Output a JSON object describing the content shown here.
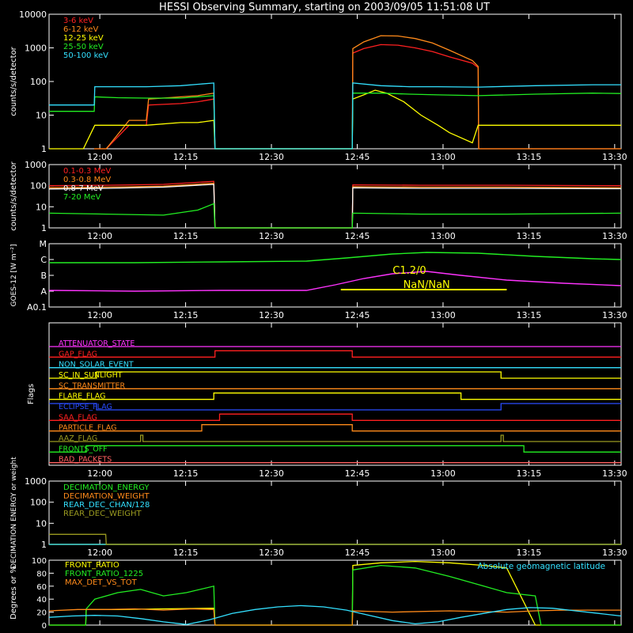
{
  "title": "HESSI Observing Summary, starting on 2003/09/05 11:51:08 UT",
  "time_ticks": [
    "12:00",
    "12:15",
    "12:30",
    "12:45",
    "13:00",
    "13:15",
    "13:30"
  ],
  "colors": {
    "red": "#ff2020",
    "orange": "#ff8a1a",
    "yellow": "#ffff00",
    "green": "#22ee22",
    "cyan": "#33e0ff",
    "magenta": "#ff33ff",
    "blue": "#2a4dff",
    "olive": "#9a9a20",
    "pink": "#ff6060",
    "white": "#ffffff"
  },
  "chart_data": [
    {
      "id": "rates",
      "type": "line",
      "ylabel": "counts/s/detector",
      "ylog": true,
      "ylim": [
        1,
        10000
      ],
      "yticks": [
        "1",
        "10",
        "100",
        "1000",
        "10000"
      ],
      "x_unit": "minutes since 11:51:08 UT",
      "series": [
        {
          "name": "3-6 keV",
          "color": "red",
          "x": [
            7.9,
            8,
            10,
            14,
            17,
            17.4,
            23,
            26,
            28.8,
            29,
            53,
            53.1,
            55,
            58,
            61,
            64,
            67,
            70,
            74,
            75,
            75.1,
            84,
            95,
            95.1,
            100
          ],
          "y": [
            1,
            1,
            1,
            5,
            5,
            20,
            22,
            25,
            30,
            1,
            1,
            700,
            950,
            1250,
            1200,
            1000,
            780,
            540,
            350,
            260,
            1,
            1,
            1,
            1,
            1
          ]
        },
        {
          "name": "6-12 keV",
          "color": "orange",
          "x": [
            7.9,
            8,
            10,
            14,
            17,
            17.4,
            23,
            26,
            28.8,
            29,
            53,
            53.1,
            55,
            58,
            61,
            64,
            67,
            70,
            74,
            75,
            75.1,
            84,
            95,
            95.1,
            100
          ],
          "y": [
            1,
            1,
            1,
            7,
            7,
            30,
            35,
            38,
            45,
            1,
            1,
            950,
            1500,
            2300,
            2250,
            1900,
            1400,
            850,
            420,
            280,
            1,
            1,
            1,
            1,
            1
          ]
        },
        {
          "name": "12-25 keV",
          "color": "yellow",
          "x": [
            0,
            2,
            4,
            6,
            8,
            10,
            14,
            17,
            23,
            26,
            28.8,
            29,
            53,
            53.1,
            55,
            57,
            59,
            62,
            65,
            68,
            70,
            74,
            75,
            78,
            84,
            90,
            95,
            100
          ],
          "y": [
            1,
            1,
            1,
            1,
            5,
            5,
            5,
            5,
            6,
            6,
            7,
            1,
            1,
            30,
            40,
            55,
            45,
            25,
            10,
            5,
            3,
            1.5,
            5,
            5,
            5,
            5,
            5,
            5
          ]
        },
        {
          "name": "25-50 keV",
          "color": "green",
          "x": [
            0,
            7.9,
            8,
            12,
            17,
            23,
            28.8,
            29,
            53,
            53.1,
            58,
            63,
            68,
            75,
            85,
            95,
            100
          ],
          "y": [
            13,
            13,
            35,
            33,
            32,
            32,
            38,
            1,
            1,
            45,
            45,
            42,
            40,
            38,
            42,
            45,
            44
          ]
        },
        {
          "name": "50-100 keV",
          "color": "cyan",
          "x": [
            0,
            7.9,
            8,
            12,
            17,
            23,
            28.8,
            29,
            53,
            53.1,
            58,
            63,
            68,
            75,
            85,
            95,
            100
          ],
          "y": [
            20,
            20,
            70,
            70,
            70,
            75,
            90,
            1,
            1,
            90,
            75,
            70,
            70,
            68,
            75,
            80,
            80
          ]
        }
      ]
    },
    {
      "id": "mev",
      "type": "line",
      "ylabel": "counts/s/detector",
      "ylog": true,
      "ylim": [
        1,
        1000
      ],
      "yticks": [
        "1",
        "10",
        "100",
        "1000"
      ],
      "x_unit": "minutes since 11:51:08 UT",
      "series": [
        {
          "name": "0.1-0.3 MeV",
          "color": "red",
          "x": [
            0,
            10,
            20,
            28.8,
            29,
            53,
            53.1,
            65,
            80,
            100
          ],
          "y": [
            100,
            105,
            115,
            160,
            1,
            1,
            110,
            105,
            105,
            100
          ]
        },
        {
          "name": "0.3-0.8 MeV",
          "color": "orange",
          "x": [
            0,
            10,
            20,
            28.8,
            29,
            53,
            53.1,
            65,
            80,
            100
          ],
          "y": [
            80,
            85,
            95,
            130,
            1,
            1,
            90,
            85,
            85,
            80
          ]
        },
        {
          "name": "0.8-7 MeV",
          "color": "white",
          "x": [
            0,
            10,
            20,
            28.8,
            29,
            53,
            53.1,
            65,
            80,
            100
          ],
          "y": [
            70,
            75,
            85,
            115,
            1,
            1,
            80,
            75,
            75,
            72
          ]
        },
        {
          "name": "7-20 MeV",
          "color": "green",
          "x": [
            0,
            10,
            20,
            26,
            28.8,
            29,
            53,
            53.1,
            65,
            80,
            100
          ],
          "y": [
            5,
            4.5,
            4,
            7,
            14,
            1,
            1,
            5,
            4.5,
            4.5,
            5
          ]
        }
      ]
    },
    {
      "id": "goes",
      "type": "line",
      "ylabel": "GOES-12 [W m⁻²]",
      "yticks": [
        "A0.1",
        "A",
        "B",
        "C",
        "M"
      ],
      "x_unit": "minutes since 11:51:08 UT",
      "annotation": "C1.2/0",
      "annotation2": "NaN/NaN",
      "series": [
        {
          "name": "GOES long",
          "color": "green",
          "x": [
            0,
            15,
            30,
            45,
            52,
            60,
            66,
            75,
            85,
            95,
            100
          ],
          "y": [
            2.8,
            2.8,
            2.85,
            2.9,
            3.1,
            3.35,
            3.45,
            3.4,
            3.2,
            3.05,
            3.0
          ]
        },
        {
          "name": "GOES short",
          "color": "magenta",
          "x": [
            0,
            15,
            30,
            45,
            50,
            55,
            60,
            66,
            72,
            80,
            90,
            100
          ],
          "y": [
            1.05,
            1.0,
            1.05,
            1.05,
            1.4,
            1.8,
            2.1,
            2.25,
            2.0,
            1.7,
            1.5,
            1.35
          ]
        }
      ],
      "bar": {
        "x": [
          51,
          80
        ],
        "level": 1.1,
        "color": "yellow"
      }
    },
    {
      "id": "flags",
      "type": "table",
      "ylabel": "Flags",
      "rows": [
        {
          "name": "ATTENUATOR_STATE",
          "color": "magenta",
          "steps": [
            [
              0,
              0
            ]
          ]
        },
        {
          "name": "GAP_FLAG",
          "color": "red",
          "steps": [
            [
              0,
              0
            ],
            [
              29,
              1
            ],
            [
              53,
              0
            ]
          ]
        },
        {
          "name": "NON_SOLAR_EVENT",
          "color": "cyan",
          "steps": [
            [
              0,
              0
            ]
          ]
        },
        {
          "name": "SC_IN_SUNLIGHT",
          "color": "yellow",
          "steps": [
            [
              0,
              0
            ],
            [
              8.3,
              1
            ],
            [
              79,
              0
            ]
          ]
        },
        {
          "name": "SC_TRANSMITTER",
          "color": "orange",
          "steps": [
            [
              0,
              0
            ]
          ]
        },
        {
          "name": "FLARE_FLAG",
          "color": "yellow",
          "steps": [
            [
              0,
              0
            ],
            [
              28.8,
              1
            ],
            [
              72,
              0
            ]
          ]
        },
        {
          "name": "ECLIPSE_FLAG",
          "color": "blue",
          "steps": [
            [
              0,
              1
            ],
            [
              8.3,
              0
            ],
            [
              79,
              1
            ]
          ]
        },
        {
          "name": "SAA_FLAG",
          "color": "red",
          "steps": [
            [
              0,
              0
            ],
            [
              29.8,
              1
            ],
            [
              53,
              0
            ]
          ]
        },
        {
          "name": "PARTICLE_FLAG",
          "color": "orange",
          "steps": [
            [
              0,
              0
            ],
            [
              26.7,
              1
            ],
            [
              53,
              0
            ]
          ]
        },
        {
          "name": "AAZ_FLAG",
          "color": "olive",
          "steps": [
            [
              0,
              0
            ],
            [
              16,
              1
            ],
            [
              16.4,
              0
            ],
            [
              79,
              1
            ],
            [
              79.4,
              0
            ]
          ]
        },
        {
          "name": "FRONTS_OFF",
          "color": "green",
          "steps": [
            [
              0,
              0
            ],
            [
              6.5,
              1
            ],
            [
              83,
              0
            ]
          ]
        },
        {
          "name": "BAD_PACKETS",
          "color": "pink",
          "steps": [
            [
              0,
              0
            ]
          ]
        }
      ]
    },
    {
      "id": "decimation",
      "type": "line",
      "ylabel": "DECIMATION ENERGY or weight",
      "ylog": true,
      "ylim": [
        1,
        1000
      ],
      "yticks": [
        "1",
        "10",
        "100",
        "1000"
      ],
      "x_unit": "minutes since 11:51:08 UT",
      "series": [
        {
          "name": "DECIMATION_ENERGY",
          "color": "green",
          "x": [
            0,
            100
          ],
          "y": [
            1,
            1
          ]
        },
        {
          "name": "DECIMATION_WEIGHT",
          "color": "orange",
          "x": [
            0,
            100
          ],
          "y": [
            1,
            1
          ]
        },
        {
          "name": "REAR_DEC_CHAN/128",
          "color": "cyan",
          "x": [
            0,
            100
          ],
          "y": [
            1,
            1
          ]
        },
        {
          "name": "REAR_DEC_WEIGHT",
          "color": "olive",
          "x": [
            0,
            9.9,
            10,
            100
          ],
          "y": [
            3,
            3,
            1,
            1
          ]
        }
      ]
    },
    {
      "id": "ratio",
      "type": "line",
      "ylabel": "Degrees or %",
      "ylim": [
        0,
        100
      ],
      "yticks": [
        "0",
        "20",
        "40",
        "60",
        "80",
        "100"
      ],
      "x_unit": "minutes since 11:51:08 UT",
      "annotation": "Absolute geomagnetic latitude",
      "series": [
        {
          "name": "FRONT_RATIO",
          "color": "yellow",
          "x": [
            0,
            6.4,
            6.5,
            12,
            20,
            28.8,
            29,
            53,
            53.1,
            58,
            64,
            70,
            76,
            80,
            85,
            90,
            100
          ],
          "y": [
            0,
            0,
            24,
            24,
            25,
            26,
            0,
            0,
            92,
            96,
            98,
            96,
            92,
            88,
            0,
            0,
            0
          ]
        },
        {
          "name": "FRONT_RATIO_1225",
          "color": "green",
          "x": [
            0,
            6.4,
            6.5,
            8,
            12,
            16,
            20,
            24,
            28.8,
            29,
            53,
            53.1,
            58,
            64,
            70,
            76,
            80,
            85,
            86,
            100
          ],
          "y": [
            0,
            0,
            25,
            40,
            50,
            55,
            45,
            50,
            60,
            0,
            0,
            85,
            92,
            88,
            75,
            60,
            50,
            45,
            0,
            0
          ]
        },
        {
          "name": "MAX_DET_VS_TOT",
          "color": "orange",
          "x": [
            0,
            5,
            10,
            15,
            20,
            25,
            28.8,
            29,
            53,
            53.1,
            60,
            70,
            80,
            85,
            90,
            100
          ],
          "y": [
            22,
            24,
            24,
            25,
            23,
            25,
            24,
            0,
            0,
            22,
            20,
            22,
            20,
            22,
            23,
            23
          ]
        },
        {
          "name": "Absolute geomagnetic latitude",
          "color": "cyan",
          "x": [
            0,
            4,
            8,
            12,
            16,
            20,
            24,
            28,
            32,
            36,
            40,
            44,
            48,
            52,
            56,
            60,
            64,
            68,
            72,
            76,
            80,
            84,
            88,
            92,
            96,
            100
          ],
          "y": [
            12,
            14,
            15,
            14,
            10,
            5,
            1,
            8,
            18,
            24,
            28,
            30,
            28,
            23,
            15,
            7,
            2,
            5,
            12,
            18,
            24,
            27,
            26,
            22,
            18,
            14
          ]
        }
      ]
    }
  ]
}
